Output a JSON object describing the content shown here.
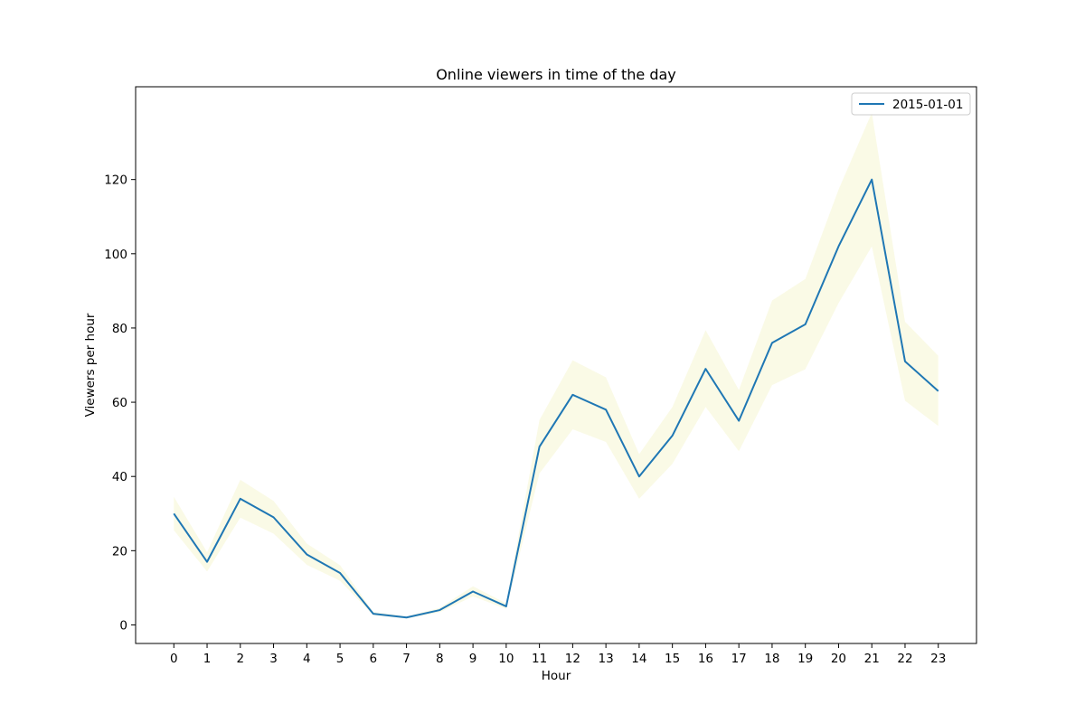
{
  "chart_data": {
    "type": "line",
    "title": "Online viewers in time of the day",
    "xlabel": "Hour",
    "ylabel": "Viewers per hour",
    "x": [
      0,
      1,
      2,
      3,
      4,
      5,
      6,
      7,
      8,
      9,
      10,
      11,
      12,
      13,
      14,
      15,
      16,
      17,
      18,
      19,
      20,
      21,
      22,
      23
    ],
    "xticks": [
      "0",
      "1",
      "2",
      "3",
      "4",
      "5",
      "6",
      "7",
      "8",
      "9",
      "10",
      "11",
      "12",
      "13",
      "14",
      "15",
      "16",
      "17",
      "18",
      "19",
      "20",
      "21",
      "22",
      "23"
    ],
    "yticks": [
      0,
      20,
      40,
      60,
      80,
      100,
      120
    ],
    "xlim": [
      -1.15,
      24.15
    ],
    "ylim": [
      -5,
      145
    ],
    "grid": false,
    "legend_position": "top-right",
    "series": [
      {
        "name": "2015-01-01",
        "color": "#1f77b4",
        "values": [
          30,
          17,
          34,
          29,
          19,
          14,
          3,
          2,
          4,
          9,
          5,
          48,
          62,
          58,
          40,
          51,
          69,
          55,
          76,
          81,
          102,
          120,
          71,
          63
        ],
        "band_lower": [
          25.5,
          14.4,
          28.9,
          24.6,
          16.2,
          11.9,
          2.6,
          1.7,
          3.4,
          7.7,
          4.3,
          40.8,
          52.7,
          49.3,
          34.0,
          43.4,
          58.7,
          46.8,
          64.6,
          68.9,
          86.7,
          102.0,
          60.4,
          53.6
        ],
        "band_upper": [
          34.5,
          19.6,
          39.1,
          33.4,
          21.9,
          16.1,
          3.5,
          2.3,
          4.6,
          10.4,
          5.8,
          55.2,
          71.3,
          66.7,
          46.0,
          58.7,
          79.4,
          63.3,
          87.4,
          93.2,
          117.3,
          138.0,
          81.7,
          72.5
        ],
        "band_color": "#fafae6"
      }
    ]
  }
}
